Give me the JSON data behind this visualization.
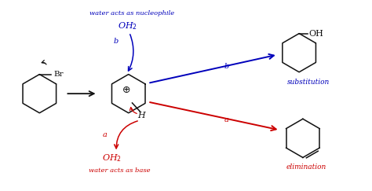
{
  "bg_color": "#ffffff",
  "blue_color": "#0000bb",
  "red_color": "#cc0000",
  "black_color": "#111111",
  "figsize": [
    4.74,
    2.43
  ],
  "dpi": 100,
  "text_nucleophile": "water acts as nucleophile",
  "text_base": "water acts as base",
  "text_substitution": "substitution",
  "text_elimination": "elimination",
  "text_oh2_top": "OH$_2$",
  "text_oh2_bottom": "OH$_2$",
  "text_b_top": "b",
  "text_b_arrow": "b",
  "text_a_curve": "a",
  "text_a_arrow": "a",
  "text_br": "Br",
  "text_h": "H",
  "text_plus": "⊕",
  "text_oh": "OH"
}
